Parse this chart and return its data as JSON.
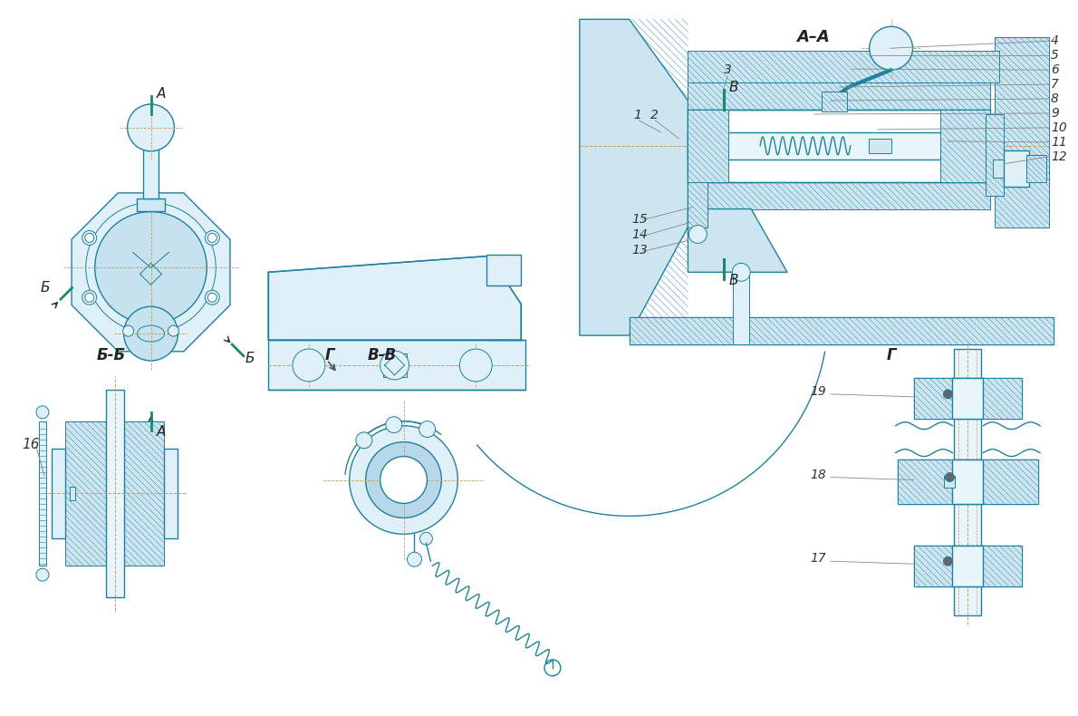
{
  "bg": "#ffffff",
  "lc": "#2080a0",
  "lc_dark": "#1060808",
  "cc": "#c8a060",
  "green": "#1a8a6a",
  "hatch_fc": "#cce5f0",
  "light_fc": "#dff0f8",
  "white_fc": "#ffffff",
  "shaft_fc": "#e8f6fc",
  "gray_fc": "#d0e8f0",
  "figsize": [
    11.9,
    7.9
  ],
  "dpi": 100,
  "labels": {
    "AA": "А–А",
    "BB": "Б-Б",
    "VV": "В-В",
    "A": "А",
    "B": "Б",
    "V": "В",
    "G": "Г"
  }
}
